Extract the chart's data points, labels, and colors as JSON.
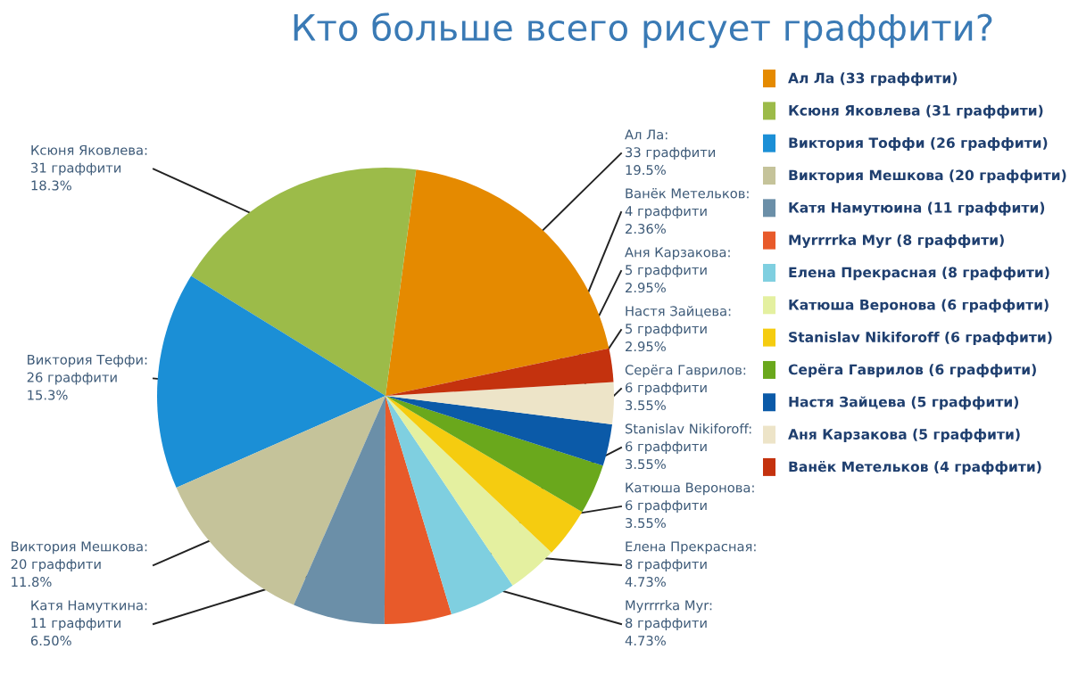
{
  "chart_data": {
    "type": "pie",
    "title": "Кто больше всего рисует граффити?",
    "categories": [
      "Ал Ла (33 граффити)",
      "Ксюня Яковлева (31 граффити)",
      "Виктория Тоффи (26 граффити)",
      "Виктория Мешкова (20 граффити)",
      "Катя Намутюина (11 граффити)",
      "Myrrrrka Myr (8 граффити)",
      "Елена Прекрасная (8 граффити)",
      "Катюша Веронова (6 граффити)",
      "Stanislav Nikiforoff (6 граффити)",
      "Серёга Гаврилов (6 граффити)",
      "Настя Зайцева (5 граффити)",
      "Аня Карзакова (5 граффити)",
      "Ванёк Метельков (4 граффити)"
    ],
    "values": [
      33,
      31,
      26,
      20,
      11,
      8,
      8,
      6,
      6,
      6,
      5,
      5,
      4
    ],
    "colors": [
      "#e58a00",
      "#9cbb49",
      "#1b8fd6",
      "#c5c39a",
      "#6b8fa8",
      "#e85a2a",
      "#7fcfe0",
      "#e4f0a0",
      "#f5cc10",
      "#6aa81c",
      "#0b5aa8",
      "#ede4c8",
      "#c4320e"
    ],
    "value_labels": [
      "Ал Ла:\n33 граффити\n19.5%",
      "Ксюня Яковлева:\n31 граффити\n18.3%",
      "Виктория Теффи:\n26 граффити\n15.3%",
      "Виктория Мешкова:\n20 граффити\n11.8%",
      "Катя Намуткина:\n11 граффити\n6.50%",
      "Myrrrrka Myr:\n8 граффити\n4.73%",
      "Елена Прекрасная:\n8 граффити\n4.73%",
      "Катюша Веронова:\n6 граффити\n3.55%",
      "Stanislav Nikiforoff:\n6 граффити\n3.55%",
      "Серёга Гаврилов:\n6 граффити\n3.55%",
      "Настя Зайцева:\n5 граффити\n2.95%",
      "Аня Карзакова:\n5 граффити\n2.95%",
      "Ванёк Метельков:\n4 граффити\n2.36%"
    ],
    "legend": "right"
  }
}
